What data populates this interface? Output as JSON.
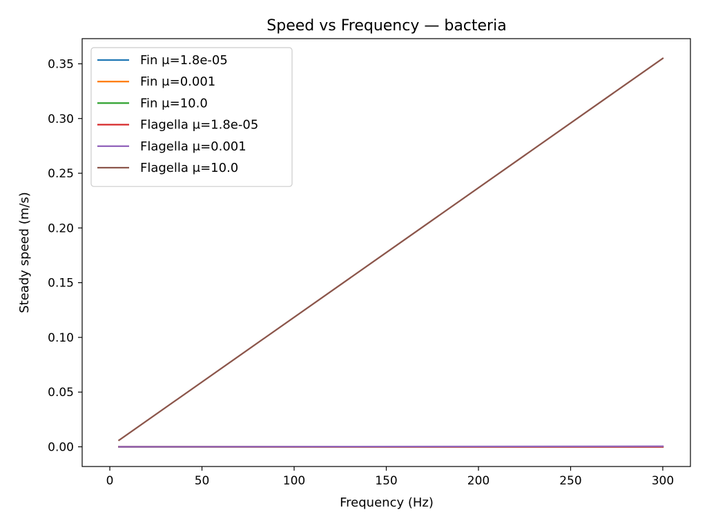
{
  "chart_data": {
    "type": "line",
    "title": "Speed vs Frequency — bacteria",
    "xlabel": "Frequency (Hz)",
    "ylabel": "Steady speed (m/s)",
    "xlim": [
      -15,
      315
    ],
    "ylim": [
      -0.018,
      0.373
    ],
    "xticks": [
      0,
      50,
      100,
      150,
      200,
      250,
      300
    ],
    "xtick_labels": [
      "0",
      "50",
      "100",
      "150",
      "200",
      "250",
      "300"
    ],
    "yticks": [
      0.0,
      0.05,
      0.1,
      0.15,
      0.2,
      0.25,
      0.3,
      0.35
    ],
    "ytick_labels": [
      "0.00",
      "0.05",
      "0.10",
      "0.15",
      "0.20",
      "0.25",
      "0.30",
      "0.35"
    ],
    "grid": false,
    "legend_position": "top-left",
    "series": [
      {
        "name": "Fin μ=1.8e-05",
        "color": "#1f77b4",
        "x": [
          5,
          300
        ],
        "y": [
          0.0,
          0.0
        ]
      },
      {
        "name": "Fin μ=0.001",
        "color": "#ff7f0e",
        "x": [
          5,
          300
        ],
        "y": [
          0.0,
          0.0
        ]
      },
      {
        "name": "Fin μ=10.0",
        "color": "#2ca02c",
        "x": [
          5,
          300
        ],
        "y": [
          0.0,
          0.0
        ]
      },
      {
        "name": "Flagella μ=1.8e-05",
        "color": "#d62728",
        "x": [
          5,
          300
        ],
        "y": [
          0.0,
          0.0
        ]
      },
      {
        "name": "Flagella μ=0.001",
        "color": "#9467bd",
        "x": [
          5,
          300
        ],
        "y": [
          0.0,
          0.0005
        ]
      },
      {
        "name": "Flagella μ=10.0",
        "color": "#8c564b",
        "x": [
          5,
          300
        ],
        "y": [
          0.006,
          0.355
        ]
      }
    ]
  }
}
